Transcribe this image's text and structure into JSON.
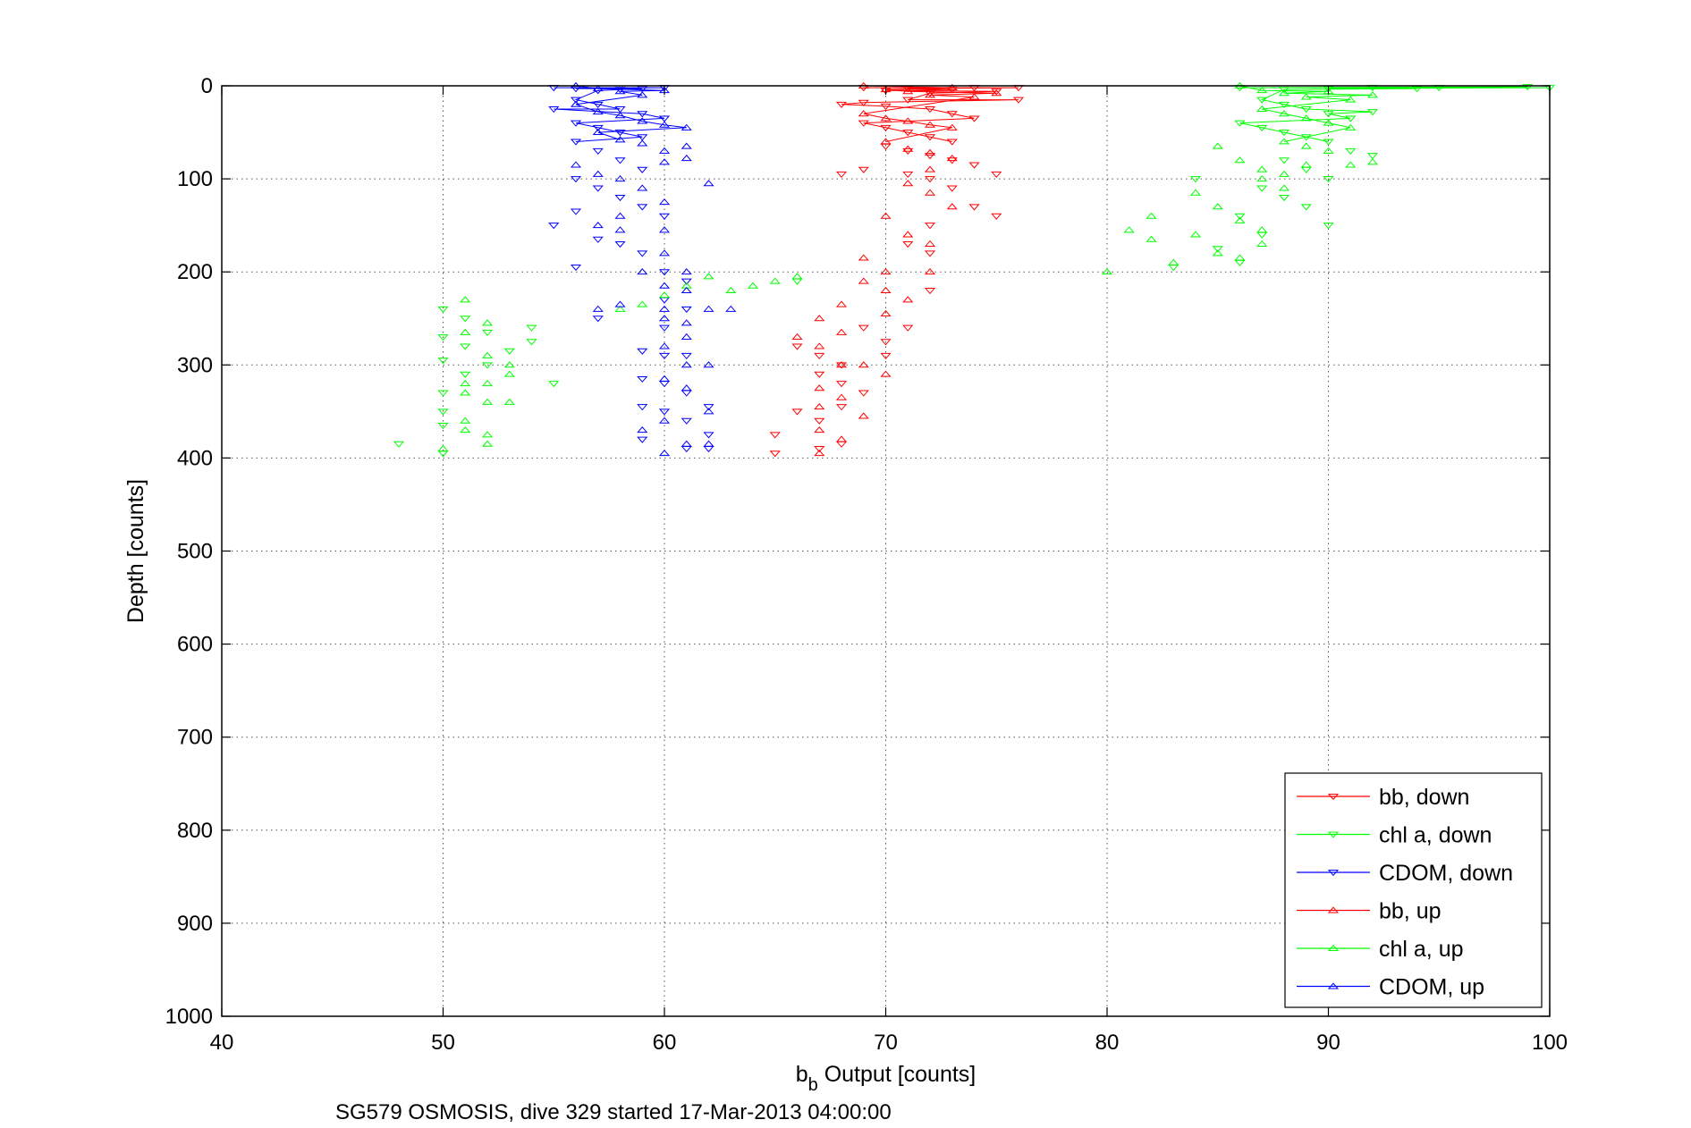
{
  "chart_data": {
    "type": "line",
    "xlabel_main": "b",
    "xlabel_sub": "b",
    "xlabel_rest": " Output [counts]",
    "ylabel": "Depth [counts]",
    "caption": "SG579 OSMOSIS, dive 329 started 17-Mar-2013 04:00:00",
    "xlim": [
      40,
      100
    ],
    "ylim": [
      0,
      1000
    ],
    "y_reversed": true,
    "grid": true,
    "legend_placement": "bottom-right",
    "xticks": [
      "40",
      "50",
      "60",
      "70",
      "80",
      "90",
      "100"
    ],
    "yticks": [
      "0",
      "100",
      "200",
      "300",
      "400",
      "500",
      "600",
      "700",
      "800",
      "900",
      "1000"
    ],
    "colors": {
      "bb": "#ff0000",
      "chl": "#00ff00",
      "cdom": "#0000ff"
    },
    "series": [
      {
        "name": "bb, down",
        "color": "#ff0000",
        "marker": "triangle-down",
        "points": [
          [
            69,
            2
          ],
          [
            70,
            5
          ],
          [
            71,
            3
          ],
          [
            72,
            8
          ],
          [
            73,
            4
          ],
          [
            74,
            2
          ],
          [
            75,
            6
          ],
          [
            76,
            2
          ],
          [
            68,
            20
          ],
          [
            69,
            18
          ],
          [
            70,
            22
          ],
          [
            71,
            15
          ],
          [
            72,
            25
          ],
          [
            73,
            30
          ],
          [
            74,
            35
          ],
          [
            69,
            40
          ],
          [
            70,
            45
          ],
          [
            71,
            50
          ],
          [
            72,
            55
          ],
          [
            73,
            60
          ],
          [
            70,
            65
          ],
          [
            71,
            70
          ],
          [
            72,
            75
          ],
          [
            73,
            80
          ],
          [
            74,
            85
          ],
          [
            71,
            95
          ],
          [
            72,
            100
          ],
          [
            73,
            110
          ],
          [
            68,
            95
          ],
          [
            69,
            90
          ],
          [
            75,
            95
          ],
          [
            74,
            130
          ],
          [
            75,
            140
          ],
          [
            76,
            15
          ],
          [
            72,
            150
          ],
          [
            71,
            170
          ],
          [
            72,
            180
          ],
          [
            72,
            220
          ],
          [
            69,
            260
          ],
          [
            70,
            275
          ],
          [
            66,
            280
          ],
          [
            67,
            290
          ],
          [
            68,
            300
          ],
          [
            67,
            310
          ],
          [
            68,
            320
          ],
          [
            69,
            330
          ],
          [
            66,
            350
          ],
          [
            68,
            345
          ],
          [
            67,
            360
          ],
          [
            65,
            375
          ],
          [
            65,
            395
          ],
          [
            67,
            390
          ],
          [
            68,
            385
          ],
          [
            70,
            290
          ],
          [
            71,
            260
          ]
        ]
      },
      {
        "name": "chl a, down",
        "color": "#00ff00",
        "marker": "triangle-down",
        "points": [
          [
            86,
            2
          ],
          [
            88,
            4
          ],
          [
            90,
            3
          ],
          [
            92,
            2
          ],
          [
            94,
            3
          ],
          [
            95,
            2
          ],
          [
            99,
            1
          ],
          [
            100,
            2
          ],
          [
            87,
            15
          ],
          [
            88,
            20
          ],
          [
            89,
            25
          ],
          [
            90,
            30
          ],
          [
            91,
            35
          ],
          [
            92,
            28
          ],
          [
            86,
            40
          ],
          [
            87,
            45
          ],
          [
            88,
            50
          ],
          [
            89,
            55
          ],
          [
            90,
            60
          ],
          [
            91,
            70
          ],
          [
            92,
            75
          ],
          [
            88,
            80
          ],
          [
            89,
            90
          ],
          [
            90,
            100
          ],
          [
            87,
            110
          ],
          [
            88,
            120
          ],
          [
            89,
            130
          ],
          [
            90,
            150
          ],
          [
            86,
            140
          ],
          [
            87,
            160
          ],
          [
            85,
            175
          ],
          [
            86,
            190
          ],
          [
            48,
            385
          ],
          [
            50,
            240
          ],
          [
            50,
            270
          ],
          [
            50,
            295
          ],
          [
            50,
            330
          ],
          [
            50,
            350
          ],
          [
            50,
            365
          ],
          [
            50,
            395
          ],
          [
            51,
            250
          ],
          [
            51,
            280
          ],
          [
            51,
            310
          ],
          [
            52,
            265
          ],
          [
            52,
            300
          ],
          [
            53,
            285
          ],
          [
            54,
            260
          ],
          [
            54,
            275
          ],
          [
            55,
            320
          ],
          [
            66,
            210
          ],
          [
            83,
            195
          ],
          [
            84,
            100
          ]
        ]
      },
      {
        "name": "CDOM, down",
        "color": "#0000ff",
        "marker": "triangle-down",
        "points": [
          [
            55,
            2
          ],
          [
            56,
            3
          ],
          [
            57,
            5
          ],
          [
            58,
            4
          ],
          [
            59,
            3
          ],
          [
            60,
            2
          ],
          [
            56,
            15
          ],
          [
            57,
            20
          ],
          [
            58,
            25
          ],
          [
            59,
            30
          ],
          [
            60,
            35
          ],
          [
            55,
            25
          ],
          [
            56,
            40
          ],
          [
            57,
            45
          ],
          [
            58,
            50
          ],
          [
            59,
            55
          ],
          [
            56,
            60
          ],
          [
            57,
            70
          ],
          [
            58,
            80
          ],
          [
            59,
            90
          ],
          [
            56,
            100
          ],
          [
            57,
            110
          ],
          [
            58,
            120
          ],
          [
            59,
            130
          ],
          [
            60,
            140
          ],
          [
            55,
            150
          ],
          [
            56,
            135
          ],
          [
            57,
            165
          ],
          [
            58,
            170
          ],
          [
            59,
            180
          ],
          [
            57,
            250
          ],
          [
            60,
            200
          ],
          [
            60,
            230
          ],
          [
            60,
            260
          ],
          [
            60,
            290
          ],
          [
            60,
            320
          ],
          [
            60,
            350
          ],
          [
            59,
            285
          ],
          [
            59,
            315
          ],
          [
            59,
            345
          ],
          [
            59,
            380
          ],
          [
            61,
            210
          ],
          [
            61,
            240
          ],
          [
            61,
            290
          ],
          [
            61,
            330
          ],
          [
            61,
            360
          ],
          [
            62,
            345
          ],
          [
            62,
            375
          ],
          [
            56,
            195
          ],
          [
            61,
            390
          ],
          [
            62,
            390
          ]
        ]
      },
      {
        "name": "bb, up",
        "color": "#ff0000",
        "marker": "triangle-up",
        "points": [
          [
            69,
            0
          ],
          [
            70,
            4
          ],
          [
            71,
            6
          ],
          [
            72,
            10
          ],
          [
            73,
            2
          ],
          [
            74,
            12
          ],
          [
            75,
            8
          ],
          [
            69,
            30
          ],
          [
            70,
            35
          ],
          [
            71,
            38
          ],
          [
            72,
            42
          ],
          [
            73,
            45
          ],
          [
            70,
            60
          ],
          [
            71,
            68
          ],
          [
            72,
            72
          ],
          [
            73,
            78
          ],
          [
            72,
            90
          ],
          [
            71,
            105
          ],
          [
            72,
            115
          ],
          [
            73,
            130
          ],
          [
            70,
            140
          ],
          [
            71,
            160
          ],
          [
            72,
            170
          ],
          [
            69,
            185
          ],
          [
            70,
            200
          ],
          [
            72,
            200
          ],
          [
            70,
            220
          ],
          [
            71,
            230
          ],
          [
            70,
            245
          ],
          [
            66,
            270
          ],
          [
            67,
            280
          ],
          [
            68,
            265
          ],
          [
            68,
            235
          ],
          [
            67,
            250
          ],
          [
            69,
            210
          ],
          [
            67,
            325
          ],
          [
            68,
            335
          ],
          [
            67,
            345
          ],
          [
            69,
            355
          ],
          [
            67,
            370
          ],
          [
            68,
            380
          ],
          [
            67,
            395
          ],
          [
            69,
            300
          ],
          [
            70,
            310
          ],
          [
            68,
            300
          ]
        ]
      },
      {
        "name": "chl a, up",
        "color": "#00ff00",
        "marker": "triangle-up",
        "points": [
          [
            86,
            0
          ],
          [
            87,
            5
          ],
          [
            88,
            8
          ],
          [
            89,
            12
          ],
          [
            90,
            6
          ],
          [
            91,
            15
          ],
          [
            92,
            10
          ],
          [
            87,
            25
          ],
          [
            88,
            30
          ],
          [
            89,
            35
          ],
          [
            90,
            40
          ],
          [
            91,
            45
          ],
          [
            88,
            60
          ],
          [
            89,
            65
          ],
          [
            90,
            70
          ],
          [
            85,
            65
          ],
          [
            86,
            80
          ],
          [
            87,
            90
          ],
          [
            88,
            95
          ],
          [
            89,
            85
          ],
          [
            91,
            85
          ],
          [
            92,
            82
          ],
          [
            84,
            115
          ],
          [
            85,
            130
          ],
          [
            86,
            145
          ],
          [
            87,
            100
          ],
          [
            88,
            110
          ],
          [
            82,
            140
          ],
          [
            81,
            155
          ],
          [
            82,
            165
          ],
          [
            83,
            190
          ],
          [
            84,
            160
          ],
          [
            85,
            180
          ],
          [
            86,
            185
          ],
          [
            87,
            170
          ],
          [
            87,
            155
          ],
          [
            80,
            200
          ],
          [
            58,
            240
          ],
          [
            59,
            235
          ],
          [
            60,
            225
          ],
          [
            61,
            215
          ],
          [
            62,
            205
          ],
          [
            63,
            220
          ],
          [
            64,
            215
          ],
          [
            65,
            210
          ],
          [
            66,
            205
          ],
          [
            51,
            230
          ],
          [
            51,
            265
          ],
          [
            52,
            255
          ],
          [
            52,
            290
          ],
          [
            52,
            320
          ],
          [
            52,
            340
          ],
          [
            52,
            375
          ],
          [
            52,
            385
          ],
          [
            53,
            310
          ],
          [
            53,
            340
          ],
          [
            53,
            300
          ],
          [
            51,
            320
          ],
          [
            51,
            330
          ],
          [
            51,
            360
          ],
          [
            51,
            370
          ],
          [
            50,
            390
          ]
        ]
      },
      {
        "name": "CDOM, up",
        "color": "#0000ff",
        "marker": "triangle-up",
        "points": [
          [
            56,
            0
          ],
          [
            57,
            3
          ],
          [
            58,
            6
          ],
          [
            59,
            10
          ],
          [
            60,
            5
          ],
          [
            56,
            20
          ],
          [
            57,
            28
          ],
          [
            58,
            32
          ],
          [
            59,
            38
          ],
          [
            60,
            42
          ],
          [
            61,
            45
          ],
          [
            57,
            50
          ],
          [
            58,
            58
          ],
          [
            59,
            62
          ],
          [
            60,
            70
          ],
          [
            61,
            65
          ],
          [
            60,
            82
          ],
          [
            61,
            78
          ],
          [
            62,
            105
          ],
          [
            56,
            85
          ],
          [
            57,
            95
          ],
          [
            58,
            100
          ],
          [
            59,
            110
          ],
          [
            60,
            125
          ],
          [
            58,
            140
          ],
          [
            57,
            150
          ],
          [
            58,
            155
          ],
          [
            60,
            155
          ],
          [
            59,
            200
          ],
          [
            60,
            180
          ],
          [
            61,
            200
          ],
          [
            60,
            215
          ],
          [
            60,
            240
          ],
          [
            60,
            250
          ],
          [
            61,
            220
          ],
          [
            61,
            255
          ],
          [
            61,
            270
          ],
          [
            61,
            300
          ],
          [
            61,
            325
          ],
          [
            62,
            240
          ],
          [
            62,
            300
          ],
          [
            62,
            350
          ],
          [
            62,
            385
          ],
          [
            63,
            240
          ],
          [
            57,
            240
          ],
          [
            58,
            235
          ],
          [
            60,
            280
          ],
          [
            60,
            315
          ],
          [
            60,
            360
          ],
          [
            61,
            385
          ],
          [
            59,
            370
          ],
          [
            60,
            395
          ]
        ]
      }
    ]
  }
}
